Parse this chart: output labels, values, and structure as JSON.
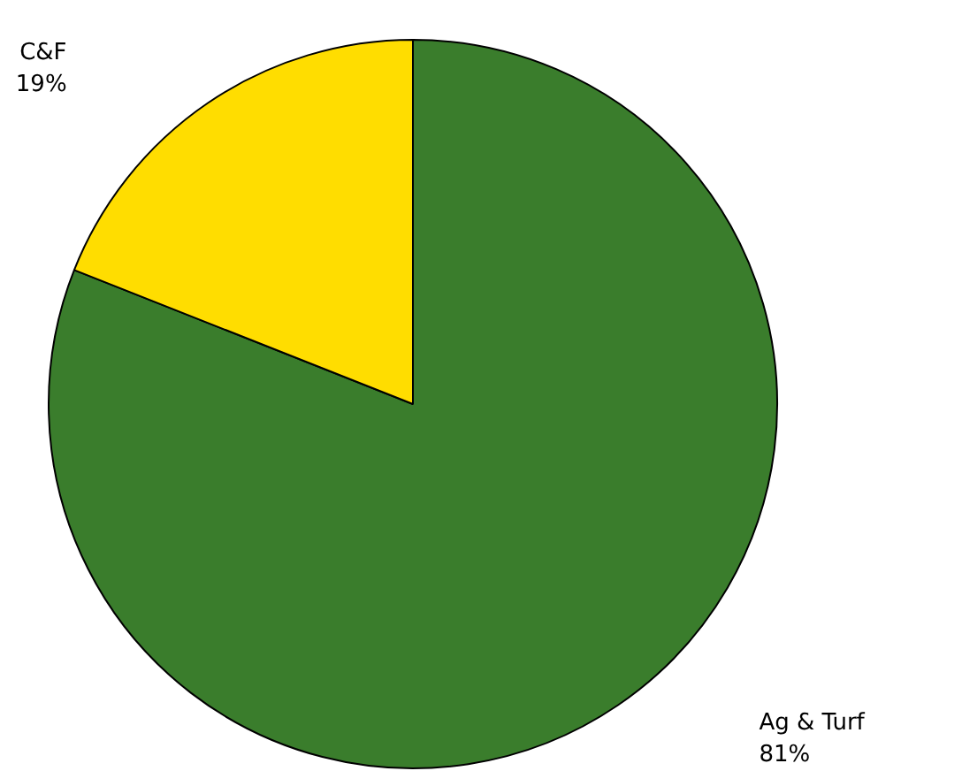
{
  "chart_data": {
    "type": "pie",
    "categories": [
      "Ag & Turf",
      "C&F"
    ],
    "values": [
      81,
      19
    ],
    "value_labels": [
      "81%",
      "19%"
    ],
    "colors": [
      "#3a7d2c",
      "#ffdd00"
    ]
  }
}
